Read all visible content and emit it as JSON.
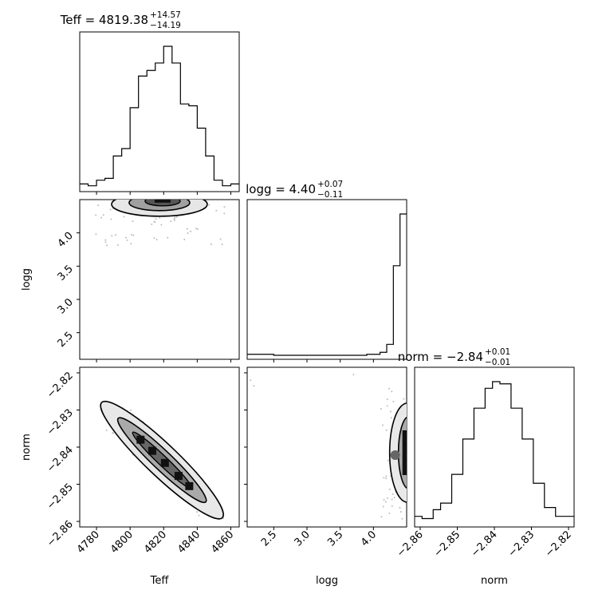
{
  "chart_data": {
    "type": "corner",
    "parameters": [
      {
        "name": "Teff",
        "label": "Teff",
        "median": "4819.38",
        "upper": "+14.57",
        "lower": "−14.19",
        "range": [
          4770,
          4865
        ],
        "ticks": [
          4780,
          4800,
          4820,
          4840,
          4860
        ],
        "tick_labels": [
          "4780",
          "4800",
          "4820",
          "4840",
          "4860"
        ]
      },
      {
        "name": "logg",
        "label": "logg",
        "median": "4.40",
        "upper": "+0.07",
        "lower": "−0.11",
        "range": [
          2.1,
          4.5
        ],
        "ticks": [
          2.5,
          3.0,
          3.5,
          4.0
        ],
        "tick_labels": [
          "2.5",
          "3.0",
          "3.5",
          "4.0"
        ]
      },
      {
        "name": "norm",
        "label": "norm",
        "median": "−2.84",
        "upper": "+0.01",
        "lower": "−0.01",
        "range": [
          -2.8615,
          -2.8185
        ],
        "ticks": [
          -2.86,
          -2.85,
          -2.84,
          -2.83,
          -2.82
        ],
        "tick_labels": [
          "−2.86",
          "−2.85",
          "−2.84",
          "−2.83",
          "−2.82"
        ]
      }
    ],
    "histograms": {
      "Teff": {
        "edges": [
          4770,
          4775,
          4780,
          4785,
          4790,
          4795,
          4800,
          4805,
          4810,
          4815,
          4820,
          4825,
          4830,
          4835,
          4840,
          4845,
          4850,
          4855,
          4860,
          4865
        ],
        "counts": [
          2,
          1,
          4,
          5,
          17,
          21,
          43,
          60,
          63,
          67,
          76,
          67,
          45,
          44,
          32,
          17,
          4,
          1,
          2
        ]
      },
      "logg": {
        "edges": [
          2.1,
          2.3,
          2.5,
          2.7,
          2.9,
          3.1,
          3.3,
          3.5,
          3.7,
          3.9,
          4.1,
          4.2,
          4.3,
          4.4,
          4.5
        ],
        "counts": [
          1,
          1,
          0,
          0,
          0,
          0,
          0,
          0,
          0,
          1,
          3,
          11,
          90,
          142
        ]
      },
      "norm": {
        "edges": [
          -2.8615,
          -2.8595,
          -2.8565,
          -2.8545,
          -2.8515,
          -2.8485,
          -2.8455,
          -2.8425,
          -2.8405,
          -2.8385,
          -2.8355,
          -2.8325,
          -2.8295,
          -2.8265,
          -2.8235,
          -2.8185
        ],
        "counts": [
          3,
          2,
          6,
          9,
          22,
          38,
          52,
          61,
          64,
          63,
          52,
          38,
          18,
          7,
          3
        ]
      }
    },
    "axis_labels": {
      "x": [
        "Teff",
        "logg",
        "norm"
      ],
      "y": [
        "logg",
        "norm"
      ]
    }
  }
}
